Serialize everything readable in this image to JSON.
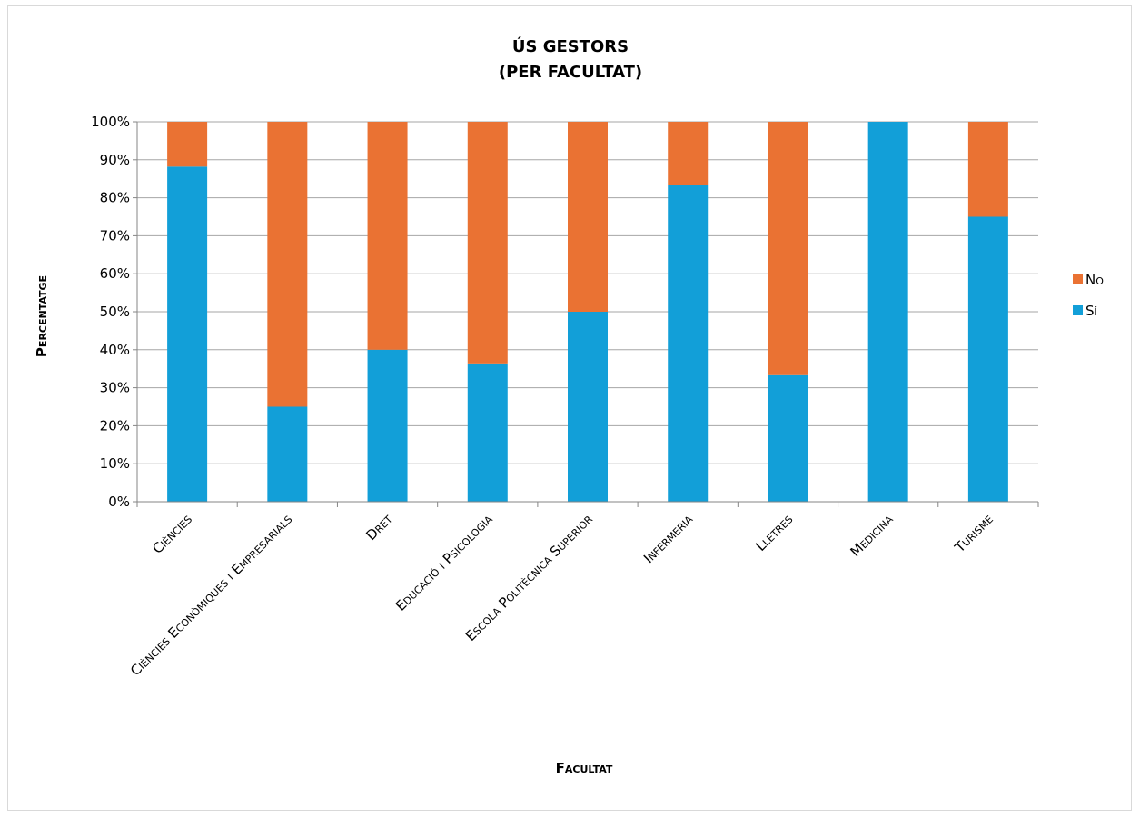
{
  "chart_data": {
    "type": "bar",
    "stacked": true,
    "title": [
      "ÚS GESTORS",
      "(PER FACULTAT)"
    ],
    "xlabel": "Facultat",
    "ylabel": "Percentatge",
    "ylim": [
      0,
      100
    ],
    "y_ticks": [
      "0%",
      "10%",
      "20%",
      "30%",
      "40%",
      "50%",
      "60%",
      "70%",
      "80%",
      "90%",
      "100%"
    ],
    "grid": true,
    "legend_position": "right",
    "categories": [
      "Ciències",
      "Ciències Econòmiques i Empresarials",
      "Dret",
      "Educació i Psicologia",
      "Escola Politècnica Superior",
      "Infermeria",
      "Lletres",
      "Medicina",
      "Turisme"
    ],
    "series": [
      {
        "name": "Sí",
        "color": "#129fd8",
        "values": [
          88.2,
          25,
          40,
          36.4,
          50,
          83.3,
          33.3,
          100,
          75
        ]
      },
      {
        "name": "No",
        "color": "#ea7233",
        "values": [
          11.8,
          75,
          60,
          63.6,
          50,
          16.7,
          66.7,
          0,
          25
        ]
      }
    ],
    "legend_order": [
      "No",
      "Sí"
    ]
  }
}
